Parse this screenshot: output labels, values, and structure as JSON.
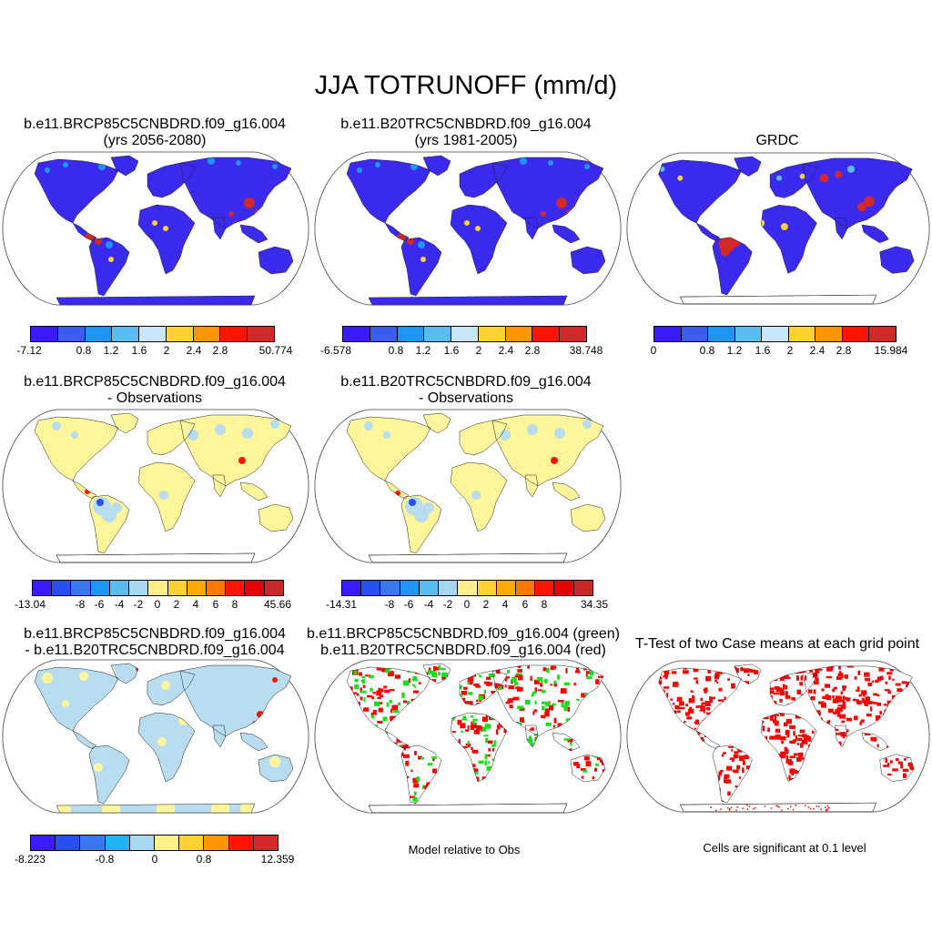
{
  "title": "JJA TOTRUNOFF (mm/d)",
  "colors": {
    "scale9": [
      "#3a1aff",
      "#3a5df0",
      "#1e96f5",
      "#5bbcef",
      "#c8e6f5",
      "#ffd232",
      "#ff9600",
      "#ff1400",
      "#d22828"
    ],
    "scale11": [
      "#3a1aff",
      "#2850f0",
      "#3a78f0",
      "#1e96f5",
      "#5bbcef",
      "#a8d8f0",
      "#fff08c",
      "#ffd232",
      "#ffaa00",
      "#ff7800",
      "#ff1400",
      "#e60000",
      "#c82828"
    ],
    "scale10": [
      "#3a1aff",
      "#2850f0",
      "#3a78f0",
      "#1eb4f5",
      "#a8d8f0",
      "#fff08c",
      "#ffd232",
      "#ff9600",
      "#ff1400",
      "#d22828"
    ],
    "land_blue": "#3a2aee",
    "land_pale": "#fff59a",
    "land_lightblue": "#b8dcf0",
    "green": "#16e016",
    "red": "#ff0000"
  },
  "panels": [
    {
      "id": "p1",
      "title1": "b.e11.BRCP85C5CNBDRD.f09_g16.004",
      "title2": "(yrs 2056-2080)"
    },
    {
      "id": "p2",
      "title1": "b.e11.B20TRC5CNBDRD.f09_g16.004",
      "title2": "(yrs 1981-2005)"
    },
    {
      "id": "p3",
      "title1": "GRDC",
      "title2": ""
    },
    {
      "id": "p4",
      "title1": "b.e11.BRCP85C5CNBDRD.f09_g16.004",
      "title2": "- Observations"
    },
    {
      "id": "p5",
      "title1": "b.e11.B20TRC5CNBDRD.f09_g16.004",
      "title2": "- Observations"
    },
    {
      "id": "p7",
      "title1": "b.e11.BRCP85C5CNBDRD.f09_g16.004",
      "title2": "- b.e11.B20TRC5CNBDRD.f09_g16.004"
    },
    {
      "id": "p8",
      "title1": "b.e11.BRCP85C5CNBDRD.f09_g16.004 (green)",
      "title2": "b.e11.B20TRC5CNBDRD.f09_g16.004 (red)"
    },
    {
      "id": "p9",
      "title1": "T-Test of two Case means at each grid point",
      "title2": ""
    }
  ],
  "colorbars": [
    {
      "id": "cb1",
      "labels": [
        "-7.12",
        "0.8",
        "1.2",
        "1.6",
        "2",
        "2.4",
        "2.8",
        "50.774"
      ]
    },
    {
      "id": "cb2",
      "labels": [
        "-6.578",
        "0.8",
        "1.2",
        "1.6",
        "2",
        "2.4",
        "2.8",
        "38.748"
      ]
    },
    {
      "id": "cb3",
      "labels": [
        "0",
        "0.8",
        "1.2",
        "1.6",
        "2",
        "2.4",
        "2.8",
        "15.984"
      ]
    },
    {
      "id": "cb4",
      "labels": [
        "-13.04",
        "-8",
        "-6",
        "-4",
        "-2",
        "0",
        "2",
        "4",
        "6",
        "8",
        "45.66"
      ]
    },
    {
      "id": "cb5",
      "labels": [
        "-14.31",
        "-8",
        "-6",
        "-4",
        "-2",
        "0",
        "2",
        "4",
        "6",
        "8",
        "34.35"
      ]
    },
    {
      "id": "cb6",
      "labels": [
        "-8.223",
        "-0.8",
        "0",
        "0.8",
        "12.359"
      ]
    }
  ],
  "notes": {
    "model_relative": "Model relative to Obs",
    "significance": "Cells are significant at 0.1 level"
  }
}
